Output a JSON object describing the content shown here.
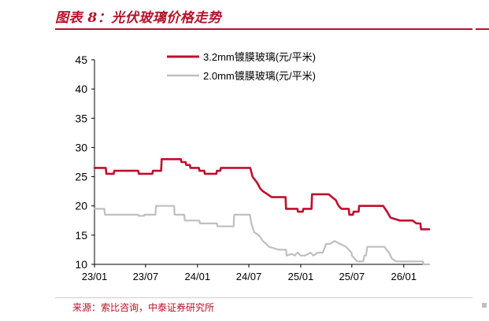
{
  "figure": {
    "title": "图表 8：光伏玻璃价格走势",
    "source": "来源：索比咨询，中泰证券研究所"
  },
  "colors": {
    "series1": "#c00d2e",
    "series2": "#bfbfbf",
    "accent": "#b4122a"
  },
  "chart_data": {
    "type": "line",
    "title": "",
    "xlabel": "",
    "ylabel": "",
    "ylim": [
      10,
      45
    ],
    "yticks": [
      10,
      15,
      20,
      25,
      30,
      35,
      40,
      45
    ],
    "xlim": [
      "2023-01",
      "2026-04"
    ],
    "xticks": [
      "23/01",
      "23/07",
      "24/01",
      "24/07",
      "25/01",
      "25/07",
      "26/01"
    ],
    "grid": false,
    "legend": "top-center",
    "series": [
      {
        "name": "3.2mm镀膜玻璃(元/平米)",
        "color": "#c00d2e",
        "x": [
          "2023-01-01",
          "2023-02-10",
          "2023-02-12",
          "2023-03-10",
          "2023-03-12",
          "2023-06-05",
          "2023-06-07",
          "2023-07-25",
          "2023-07-27",
          "2023-08-25",
          "2023-08-27",
          "2023-11-03",
          "2023-11-05",
          "2023-11-20",
          "2023-11-22",
          "2023-12-05",
          "2023-12-07",
          "2024-01-06",
          "2024-01-08",
          "2024-01-25",
          "2024-01-27",
          "2024-03-08",
          "2024-03-10",
          "2024-03-22",
          "2024-03-24",
          "2024-05-08",
          "2024-05-10",
          "2024-06-15",
          "2024-07-06",
          "2024-07-14",
          "2024-07-22",
          "2024-07-30",
          "2024-08-10",
          "2024-08-20",
          "2024-09-05",
          "2024-09-20",
          "2024-10-20",
          "2024-11-08",
          "2024-11-10",
          "2024-12-20",
          "2024-12-22",
          "2025-01-08",
          "2025-01-10",
          "2025-02-08",
          "2025-02-10",
          "2025-04-10",
          "2025-04-22",
          "2025-05-05",
          "2025-05-15",
          "2025-05-25",
          "2025-06-01",
          "2025-06-20",
          "2025-06-22",
          "2025-07-05",
          "2025-07-07",
          "2025-07-25",
          "2025-07-27",
          "2025-08-20",
          "2025-08-22",
          "2025-10-20",
          "2025-11-03",
          "2025-11-15",
          "2025-12-18",
          "2026-02-01",
          "2026-02-15",
          "2026-03-01",
          "2026-03-03",
          "2026-04-01"
        ],
        "values": [
          26.5,
          26.5,
          25.5,
          25.5,
          26.0,
          26.0,
          25.5,
          25.5,
          26.0,
          26.0,
          28.0,
          28.0,
          27.5,
          27.5,
          27.0,
          27.0,
          26.5,
          26.5,
          26.0,
          26.0,
          25.5,
          25.5,
          26.0,
          26.0,
          26.5,
          26.5,
          26.5,
          26.5,
          26.5,
          25.0,
          24.5,
          24.0,
          23.0,
          22.5,
          22.0,
          21.5,
          21.5,
          21.5,
          19.5,
          19.5,
          19.0,
          19.0,
          19.5,
          19.5,
          22.0,
          22.0,
          21.5,
          21.0,
          20.0,
          19.5,
          19.5,
          19.5,
          18.5,
          18.5,
          19.0,
          19.0,
          20.0,
          20.0,
          20.0,
          20.0,
          19.0,
          18.0,
          17.5,
          17.5,
          17.0,
          17.0,
          16.0,
          16.0
        ]
      },
      {
        "name": "2.0mm镀膜玻璃(元/平米)",
        "color": "#bfbfbf",
        "x": [
          "2023-01-01",
          "2023-02-05",
          "2023-02-07",
          "2023-06-05",
          "2023-06-07",
          "2023-06-25",
          "2023-06-27",
          "2023-08-05",
          "2023-08-07",
          "2023-08-10",
          "2023-08-12",
          "2023-10-10",
          "2023-10-12",
          "2023-11-15",
          "2023-11-17",
          "2024-01-08",
          "2024-01-10",
          "2024-03-10",
          "2024-03-12",
          "2024-05-08",
          "2024-05-10",
          "2024-06-15",
          "2024-07-05",
          "2024-07-10",
          "2024-07-20",
          "2024-08-05",
          "2024-08-20",
          "2024-09-01",
          "2024-09-10",
          "2024-09-25",
          "2024-10-15",
          "2024-11-10",
          "2024-11-12",
          "2024-12-01",
          "2024-12-10",
          "2024-12-20",
          "2025-01-01",
          "2025-01-15",
          "2025-02-05",
          "2025-02-15",
          "2025-03-01",
          "2025-03-20",
          "2025-04-01",
          "2025-04-15",
          "2025-05-01",
          "2025-05-20",
          "2025-06-10",
          "2025-06-30",
          "2025-07-01",
          "2025-07-20",
          "2025-07-25",
          "2025-08-10",
          "2025-08-15",
          "2025-08-20",
          "2025-08-25",
          "2025-10-25",
          "2025-11-01",
          "2025-11-10",
          "2025-11-20",
          "2025-12-05",
          "2026-01-10",
          "2026-01-12",
          "2026-03-10",
          "2026-03-12",
          "2026-04-01"
        ],
        "values": [
          19.5,
          19.5,
          18.5,
          18.5,
          18.3,
          18.3,
          18.5,
          18.5,
          20.0,
          20.0,
          20.0,
          20.0,
          18.5,
          18.5,
          17.5,
          17.5,
          17.0,
          17.0,
          16.5,
          16.5,
          18.5,
          18.5,
          18.5,
          17.0,
          15.5,
          15.0,
          14.0,
          13.5,
          13.0,
          12.8,
          12.5,
          12.5,
          11.5,
          11.8,
          11.5,
          12.0,
          11.5,
          11.5,
          12.0,
          11.5,
          12.0,
          12.0,
          13.5,
          13.5,
          14.0,
          13.5,
          13.0,
          12.0,
          11.5,
          10.5,
          10.5,
          10.5,
          11.5,
          11.5,
          13.0,
          13.0,
          12.5,
          12.0,
          11.0,
          10.5,
          10.5,
          10.5,
          10.5,
          10.0,
          10.0
        ]
      }
    ]
  }
}
